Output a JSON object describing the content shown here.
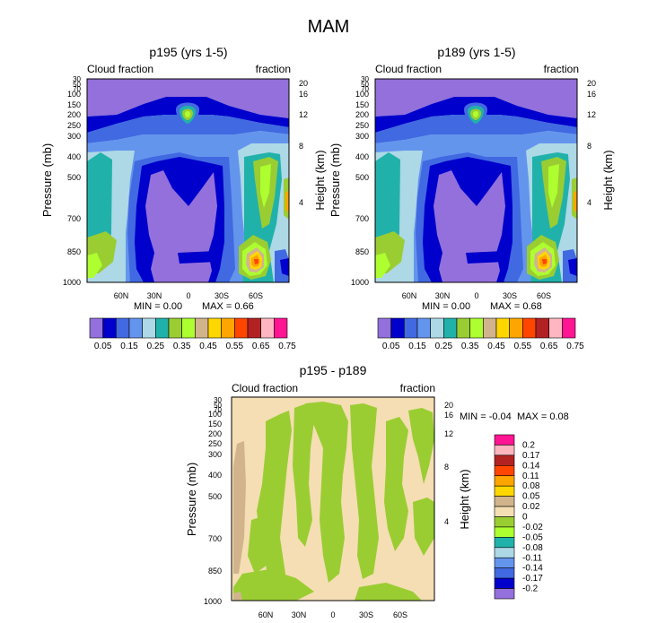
{
  "figure_title": "MAM",
  "chart_data": [
    {
      "type": "heatmap",
      "id": "p195",
      "title": "p195 (yrs 1-5)",
      "subtitle_left": "Cloud fraction",
      "subtitle_right": "fraction",
      "xlabel": "",
      "ylabel": "Pressure (mb)",
      "ylabel_right": "Height (km)",
      "x_ticks": [
        "60N",
        "30N",
        "0",
        "30S",
        "60S"
      ],
      "x_range": [
        90,
        -90
      ],
      "y_ticks": [
        "30",
        "50",
        "70",
        "100",
        "150",
        "200",
        "250",
        "300",
        "400",
        "500",
        "700",
        "850",
        "1000"
      ],
      "y_range": [
        30,
        1000
      ],
      "y_right_ticks": [
        "20",
        "16",
        "12",
        "8",
        "4"
      ],
      "min_label": "MIN =   0.00",
      "max_label": "MAX =   0.66",
      "levels": [
        "0.05",
        "0.15",
        "0.25",
        "0.35",
        "0.45",
        "0.55",
        "0.65",
        "0.75"
      ],
      "colors": [
        "#9370DB",
        "#0000CD",
        "#4169E1",
        "#6495ED",
        "#ADD8E6",
        "#20B2AA",
        "#9ACD32",
        "#ADFF2F",
        "#D2B48C",
        "#FFD700",
        "#FFA500",
        "#FF4500",
        "#B22222",
        "#FFB6C1",
        "#FF1493"
      ],
      "min": 0.0,
      "max": 0.66
    },
    {
      "type": "heatmap",
      "id": "p189",
      "title": "p189 (yrs 1-5)",
      "subtitle_left": "Cloud fraction",
      "subtitle_right": "fraction",
      "xlabel": "",
      "ylabel": "Pressure (mb)",
      "ylabel_right": "Height (km)",
      "x_ticks": [
        "60N",
        "30N",
        "0",
        "30S",
        "60S"
      ],
      "x_range": [
        90,
        -90
      ],
      "y_ticks": [
        "30",
        "50",
        "70",
        "100",
        "150",
        "200",
        "250",
        "300",
        "400",
        "500",
        "700",
        "850",
        "1000"
      ],
      "y_range": [
        30,
        1000
      ],
      "y_right_ticks": [
        "20",
        "16",
        "12",
        "8",
        "4"
      ],
      "min_label": "MIN =   0.00",
      "max_label": "MAX =   0.68",
      "levels": [
        "0.05",
        "0.15",
        "0.25",
        "0.35",
        "0.45",
        "0.55",
        "0.65",
        "0.75"
      ],
      "colors": [
        "#9370DB",
        "#0000CD",
        "#4169E1",
        "#6495ED",
        "#ADD8E6",
        "#20B2AA",
        "#9ACD32",
        "#ADFF2F",
        "#D2B48C",
        "#FFD700",
        "#FFA500",
        "#FF4500",
        "#B22222",
        "#FFB6C1",
        "#FF1493"
      ],
      "min": 0.0,
      "max": 0.68
    },
    {
      "type": "heatmap",
      "id": "diff",
      "title": "p195 - p189",
      "subtitle_left": "Cloud fraction",
      "subtitle_right": "fraction",
      "xlabel": "",
      "ylabel": "Pressure (mb)",
      "ylabel_right": "Height (km)",
      "x_ticks": [
        "60N",
        "30N",
        "0",
        "30S",
        "60S"
      ],
      "x_range": [
        90,
        -90
      ],
      "y_ticks": [
        "30",
        "50",
        "70",
        "100",
        "150",
        "200",
        "250",
        "300",
        "400",
        "500",
        "700",
        "850",
        "1000"
      ],
      "y_range": [
        30,
        1000
      ],
      "y_right_ticks": [
        "20",
        "16",
        "12",
        "8",
        "4"
      ],
      "min_label": "MIN =  -0.04",
      "max_label": "MAX =  0.08",
      "levels": [
        "0.2",
        "0.17",
        "0.14",
        "0.11",
        "0.08",
        "0.05",
        "0.02",
        "0",
        "-0.02",
        "-0.05",
        "-0.08",
        "-0.11",
        "-0.14",
        "-0.17",
        "-0.2"
      ],
      "colors": [
        "#FF1493",
        "#FFB6C1",
        "#B22222",
        "#FF4500",
        "#FFA500",
        "#FFD700",
        "#D2B48C",
        "#F5DEB3",
        "#9ACD32",
        "#ADFF2F",
        "#20B2AA",
        "#ADD8E6",
        "#6495ED",
        "#4169E1",
        "#0000CD",
        "#9370DB"
      ],
      "min": -0.04,
      "max": 0.08
    }
  ]
}
